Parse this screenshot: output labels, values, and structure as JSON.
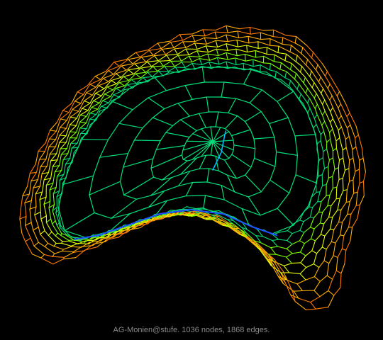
{
  "caption": "AG-Monien@stufe. 1036 nodes, 1868 edges.",
  "background_color": "#000000",
  "edge_palette": [
    "#1f4fff",
    "#00b4ff",
    "#00e07a",
    "#7cff00",
    "#e6ff00",
    "#ffb000",
    "#ff7a00"
  ],
  "graph": {
    "name": "AG-Monien@stufe",
    "nodes": 1036,
    "edges": 1868
  }
}
